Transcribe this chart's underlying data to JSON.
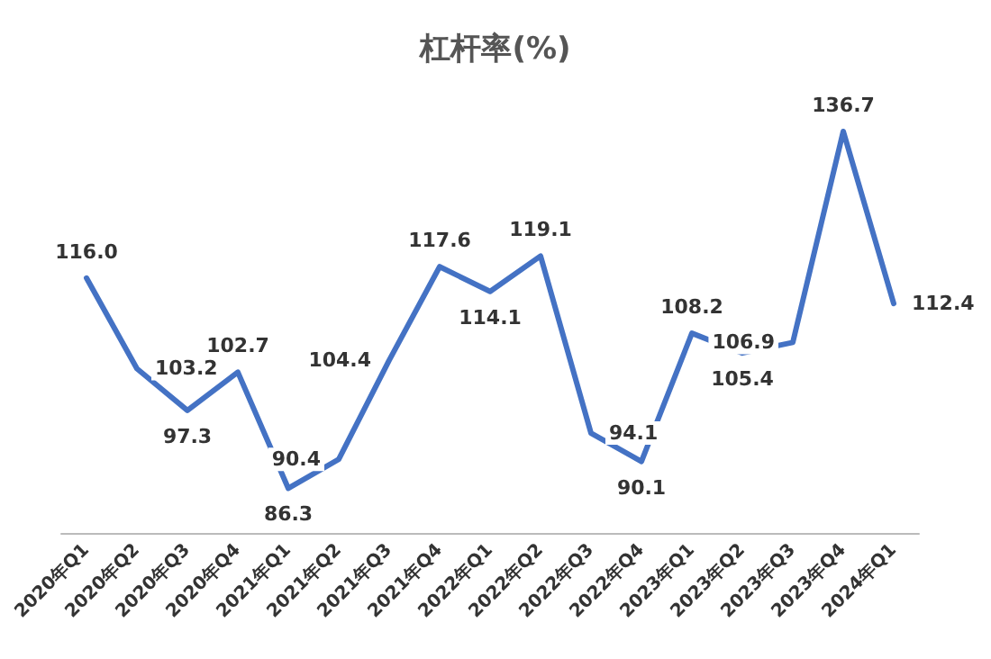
{
  "chart_data": {
    "type": "line",
    "title": "杠杆率(%)",
    "categories": [
      "2020年Q1",
      "2020年Q2",
      "2020年Q3",
      "2020年Q4",
      "2021年Q1",
      "2021年Q2",
      "2021年Q3",
      "2021年Q4",
      "2022年Q1",
      "2022年Q2",
      "2022年Q3",
      "2022年Q4",
      "2023年Q1",
      "2023年Q2",
      "2023年Q3",
      "2023年Q4",
      "2024年Q1"
    ],
    "series": [
      {
        "color": "#4472c4",
        "values": [
          116.0,
          103.2,
          97.3,
          102.7,
          86.3,
          90.4,
          104.4,
          117.6,
          114.1,
          119.1,
          94.1,
          90.1,
          108.2,
          105.4,
          106.9,
          136.7,
          112.4
        ],
        "value_labels": [
          "116.0",
          "103.2",
          "97.3",
          "102.7",
          "86.3",
          "90.4",
          "104.4",
          "117.6",
          "114.1",
          "119.1",
          "94.1",
          "90.1",
          "108.2",
          "105.4",
          "106.9",
          "136.7",
          "112.4"
        ]
      }
    ],
    "marker": "none",
    "line_style": "solid",
    "grid": false
  }
}
